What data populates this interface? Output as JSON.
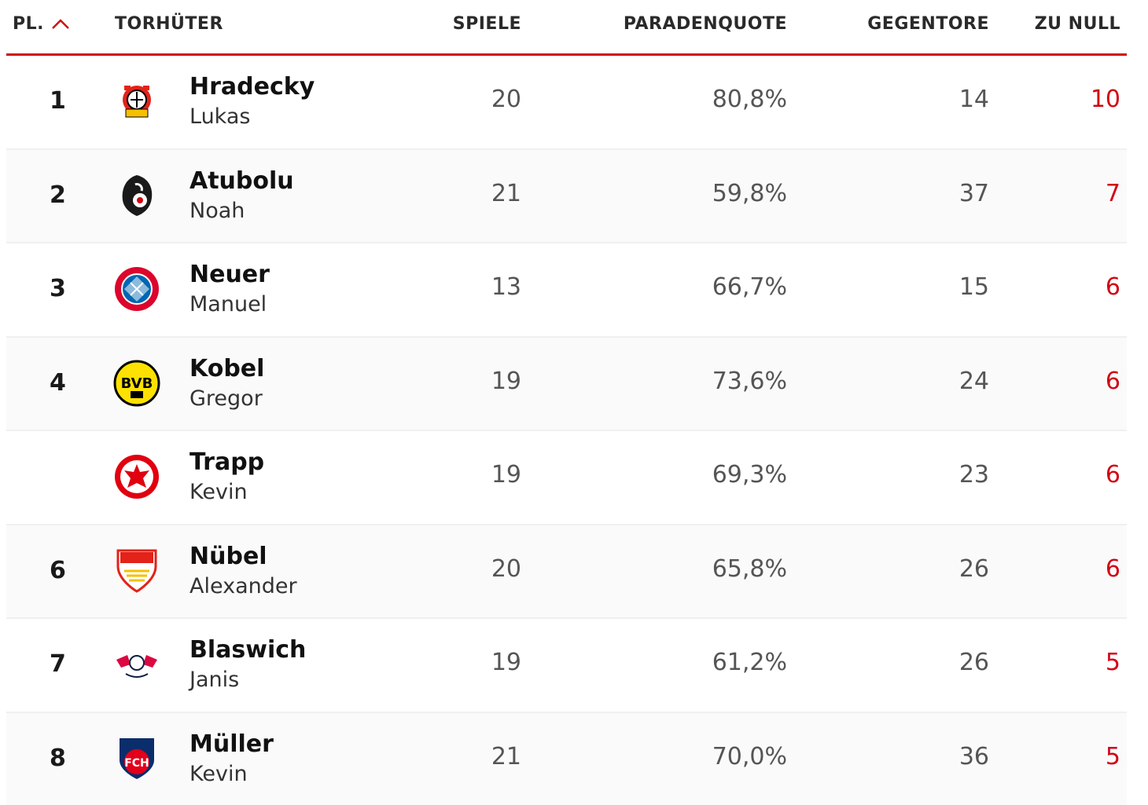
{
  "header": {
    "rank_label": "PL.",
    "name_label": "TORHÜTER",
    "games_label": "SPIELE",
    "save_pct_label": "PARADENQUOTE",
    "goals_against_label": "GEGENTORE",
    "clean_sheets_label": "ZU NULL",
    "sort_icon": "chevron-up-icon"
  },
  "colors": {
    "accent": "#d20515"
  },
  "rows": [
    {
      "rank": "1",
      "last": "Hradecky",
      "first": "Lukas",
      "games": "20",
      "save_pct": "80,8%",
      "goals_against": "14",
      "clean_sheets": "10",
      "logo": "leverkusen-logo"
    },
    {
      "rank": "2",
      "last": "Atubolu",
      "first": "Noah",
      "games": "21",
      "save_pct": "59,8%",
      "goals_against": "37",
      "clean_sheets": "7",
      "logo": "freiburg-logo"
    },
    {
      "rank": "3",
      "last": "Neuer",
      "first": "Manuel",
      "games": "13",
      "save_pct": "66,7%",
      "goals_against": "15",
      "clean_sheets": "6",
      "logo": "bayern-logo"
    },
    {
      "rank": "4",
      "last": "Kobel",
      "first": "Gregor",
      "games": "19",
      "save_pct": "73,6%",
      "goals_against": "24",
      "clean_sheets": "6",
      "logo": "dortmund-logo"
    },
    {
      "rank": "",
      "last": "Trapp",
      "first": "Kevin",
      "games": "19",
      "save_pct": "69,3%",
      "goals_against": "23",
      "clean_sheets": "6",
      "logo": "frankfurt-logo"
    },
    {
      "rank": "6",
      "last": "Nübel",
      "first": "Alexander",
      "games": "20",
      "save_pct": "65,8%",
      "goals_against": "26",
      "clean_sheets": "6",
      "logo": "stuttgart-logo"
    },
    {
      "rank": "7",
      "last": "Blaswich",
      "first": "Janis",
      "games": "19",
      "save_pct": "61,2%",
      "goals_against": "26",
      "clean_sheets": "5",
      "logo": "leipzig-logo"
    },
    {
      "rank": "8",
      "last": "Müller",
      "first": "Kevin",
      "games": "21",
      "save_pct": "70,0%",
      "goals_against": "36",
      "clean_sheets": "5",
      "logo": "heidenheim-logo"
    }
  ]
}
